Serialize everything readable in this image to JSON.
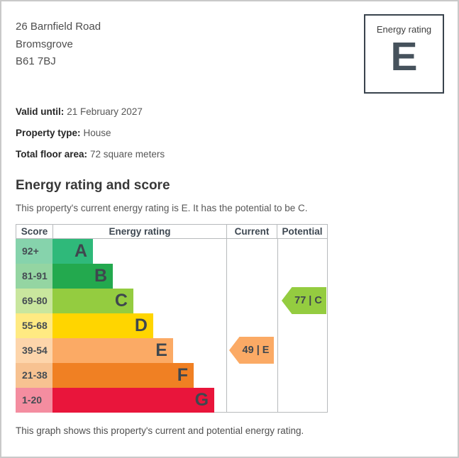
{
  "page": {
    "address_lines": [
      "26 Barnfield Road",
      "Bromsgrove",
      "B61 7BJ"
    ],
    "rating_box": {
      "label": "Energy rating",
      "value": "E"
    },
    "details": [
      {
        "label": "Valid until:",
        "value": "21 February 2027"
      },
      {
        "label": "Property type:",
        "value": "House"
      },
      {
        "label": "Total floor area:",
        "value": "72 square meters"
      }
    ],
    "section_title": "Energy rating and score",
    "section_description": "This property's current energy rating is E. It has the potential to be C.",
    "caption": "This graph shows this property's current and potential energy rating."
  },
  "chart_data": {
    "type": "bar",
    "title": "Energy rating and score",
    "headers": [
      "Score",
      "Energy rating",
      "Current",
      "Potential"
    ],
    "bands": [
      {
        "score": "92+",
        "letter": "A",
        "color": "#2fb97a",
        "tint": "#86d3ac",
        "width_pct": 23.2
      },
      {
        "score": "81-91",
        "letter": "B",
        "color": "#23a94e",
        "tint": "#94d5a2",
        "width_pct": 34.6
      },
      {
        "score": "69-80",
        "letter": "C",
        "color": "#94cc40",
        "tint": "#c9e69e",
        "width_pct": 46.3
      },
      {
        "score": "55-68",
        "letter": "D",
        "color": "#ffd500",
        "tint": "#ffea82",
        "width_pct": 57.7
      },
      {
        "score": "39-54",
        "letter": "E",
        "color": "#fbaa65",
        "tint": "#fdd5ab",
        "width_pct": 69.1
      },
      {
        "score": "21-38",
        "letter": "F",
        "color": "#f08023",
        "tint": "#f7c291",
        "width_pct": 80.9
      },
      {
        "score": "1-20",
        "letter": "G",
        "color": "#e9153b",
        "tint": "#f48da0",
        "width_pct": 92.7
      }
    ],
    "current": {
      "label": "49 | E",
      "value": 49,
      "band": "E",
      "color": "#fbaa65"
    },
    "potential": {
      "label": "77 | C",
      "value": 77,
      "band": "C",
      "color": "#94cc40"
    }
  }
}
